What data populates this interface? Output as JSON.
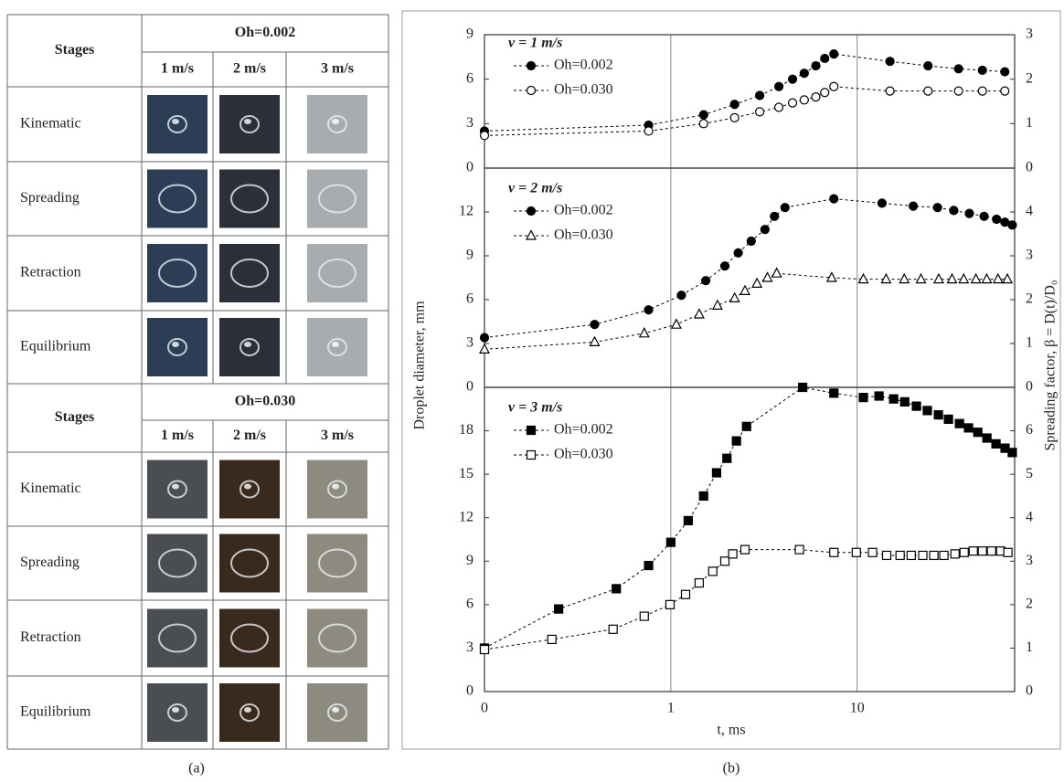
{
  "table": {
    "blocks": [
      {
        "stages_header": "Stages",
        "group": "Oh=0.002",
        "speeds": [
          "1 m/s",
          "2 m/s",
          "3 m/s"
        ],
        "rows": [
          "Kinematic",
          "Spreading",
          "Retraction",
          "Equilibrium"
        ]
      },
      {
        "stages_header": "Stages",
        "group": "Oh=0.030",
        "speeds": [
          "1 m/s",
          "2 m/s",
          "3 m/s"
        ],
        "rows": [
          "Kinematic",
          "Spreading",
          "Retraction",
          "Equilibrium"
        ]
      }
    ]
  },
  "captions": [
    "(a)",
    "(b)"
  ],
  "chart_data": [
    {
      "type": "line",
      "title": "v = 1 m/s",
      "ylim": [
        0,
        9
      ],
      "yticks": [
        0,
        3,
        6,
        9
      ],
      "y2lim": [
        0,
        3
      ],
      "y2ticks": [
        0,
        1,
        2,
        3
      ],
      "series": [
        {
          "name": "Oh=0.002",
          "color": "#000000",
          "marker": "circle",
          "filled": true,
          "x": [
            0.1,
            0.76,
            1.5,
            2.2,
            3.0,
            3.8,
            4.5,
            5.2,
            6.0,
            6.7,
            7.5,
            15,
            24,
            35,
            47,
            62
          ],
          "values": [
            2.5,
            2.9,
            3.6,
            4.3,
            4.9,
            5.5,
            6.0,
            6.4,
            6.9,
            7.4,
            7.7,
            7.2,
            6.9,
            6.7,
            6.6,
            6.5
          ]
        },
        {
          "name": "Oh=0.030",
          "color": "#000000",
          "marker": "circle",
          "filled": false,
          "x": [
            0.1,
            0.76,
            1.5,
            2.2,
            3.0,
            3.8,
            4.5,
            5.2,
            6.0,
            6.7,
            7.5,
            15,
            24,
            35,
            47,
            62
          ],
          "values": [
            2.2,
            2.5,
            3.0,
            3.4,
            3.8,
            4.1,
            4.4,
            4.6,
            4.8,
            5.1,
            5.5,
            5.2,
            5.2,
            5.2,
            5.2,
            5.2
          ]
        }
      ]
    },
    {
      "type": "line",
      "title": "v = 2 m/s",
      "ylabel": "Droplet diameter, mm",
      "y2label": "Spreading factor, β = D(t)/D₀",
      "ylim": [
        0,
        15
      ],
      "yticks": [
        0,
        3,
        6,
        9,
        12
      ],
      "y2lim": [
        0,
        5
      ],
      "y2ticks": [
        0,
        1,
        2,
        3,
        4
      ],
      "series": [
        {
          "name": "Oh=0.002",
          "color": "#000000",
          "marker": "circle",
          "filled": true,
          "x": [
            0.1,
            0.39,
            0.76,
            1.14,
            1.54,
            1.95,
            2.3,
            2.7,
            3.2,
            3.6,
            4.1,
            7.5,
            13.6,
            20,
            27,
            33,
            40,
            48,
            56,
            62,
            68
          ],
          "values": [
            3.4,
            4.3,
            5.3,
            6.3,
            7.3,
            8.3,
            9.2,
            10.0,
            10.8,
            11.7,
            12.3,
            12.9,
            12.6,
            12.4,
            12.3,
            12.1,
            11.9,
            11.7,
            11.5,
            11.3,
            11.1
          ]
        },
        {
          "name": "Oh=0.030",
          "color": "#000000",
          "marker": "triangle",
          "filled": false,
          "x": [
            0.1,
            0.39,
            0.72,
            1.07,
            1.42,
            1.78,
            2.2,
            2.5,
            2.9,
            3.3,
            3.7,
            7.3,
            10.8,
            14.3,
            17.9,
            22,
            27.4,
            32.3,
            37.3,
            43.4,
            49.6,
            57,
            64
          ],
          "values": [
            2.6,
            3.1,
            3.7,
            4.3,
            5.0,
            5.6,
            6.1,
            6.6,
            7.1,
            7.5,
            7.8,
            7.5,
            7.4,
            7.4,
            7.4,
            7.4,
            7.4,
            7.4,
            7.4,
            7.4,
            7.4,
            7.4,
            7.4
          ]
        }
      ]
    },
    {
      "type": "line",
      "title": "v = 3 m/s",
      "xlabel": "t, ms",
      "xscale": "log",
      "xlim": [
        0.1,
        70
      ],
      "xticks": [
        {
          "value": 0.1,
          "label": "0"
        },
        1,
        10
      ],
      "ylim": [
        0,
        21
      ],
      "yticks": [
        0,
        3,
        6,
        9,
        12,
        15,
        18
      ],
      "y2lim": [
        0,
        7
      ],
      "y2ticks": [
        0,
        1,
        2,
        3,
        4,
        5,
        6
      ],
      "series": [
        {
          "name": "Oh=0.002",
          "color": "#000000",
          "marker": "square",
          "filled": true,
          "x": [
            0.1,
            0.25,
            0.51,
            0.76,
            1.0,
            1.24,
            1.5,
            1.76,
            2.0,
            2.25,
            2.55,
            5.1,
            7.5,
            10.8,
            13.1,
            15.7,
            18,
            20.8,
            23.8,
            27.3,
            30.9,
            35.4,
            39.6,
            44.4,
            49.7,
            55.6,
            62.2,
            68
          ],
          "values": [
            3.0,
            5.7,
            7.1,
            8.7,
            10.3,
            11.8,
            13.5,
            15.1,
            16.1,
            17.3,
            18.3,
            21.0,
            20.6,
            20.3,
            20.4,
            20.2,
            20.0,
            19.7,
            19.4,
            19.1,
            18.8,
            18.5,
            18.2,
            17.9,
            17.5,
            17.1,
            16.8,
            16.5
          ]
        },
        {
          "name": "Oh=0.030",
          "color": "#000000",
          "marker": "square",
          "filled": false,
          "x": [
            0.1,
            0.23,
            0.49,
            0.72,
            0.99,
            1.2,
            1.42,
            1.68,
            1.95,
            2.15,
            2.5,
            4.9,
            7.5,
            9.9,
            12.1,
            14.4,
            17,
            19.5,
            22.5,
            25.8,
            29.2,
            33.5,
            37.5,
            42,
            47,
            52.6,
            58.9,
            64.4
          ],
          "values": [
            2.9,
            3.6,
            4.3,
            5.2,
            6.0,
            6.7,
            7.5,
            8.3,
            9.0,
            9.5,
            9.8,
            9.8,
            9.6,
            9.6,
            9.6,
            9.4,
            9.4,
            9.4,
            9.4,
            9.4,
            9.4,
            9.5,
            9.6,
            9.7,
            9.7,
            9.7,
            9.7,
            9.6
          ]
        }
      ]
    }
  ]
}
